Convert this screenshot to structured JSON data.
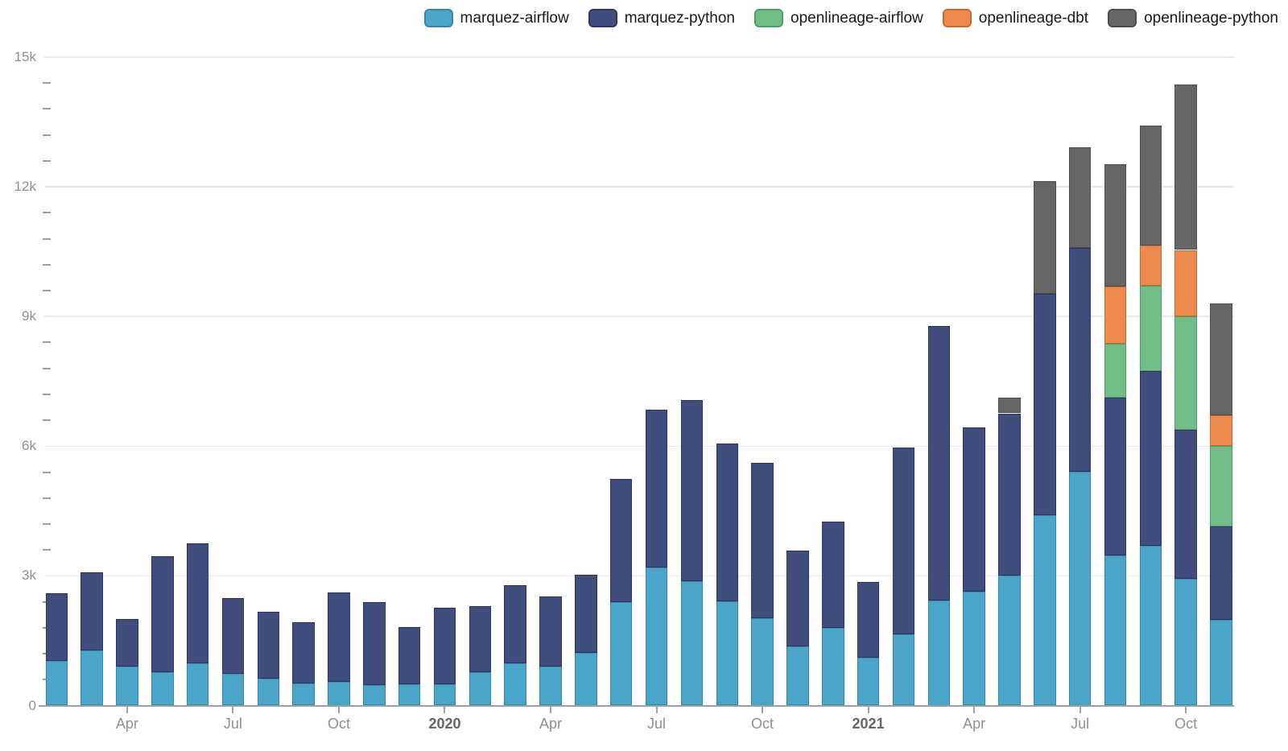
{
  "legend": {
    "items": [
      {
        "label": "marquez-airflow",
        "color": "#4aa5c9",
        "border": "#3786ab"
      },
      {
        "label": "marquez-python",
        "color": "#404d7d",
        "border": "#2b3560"
      },
      {
        "label": "openlineage-airflow",
        "color": "#73bd89",
        "border": "#4f9d68"
      },
      {
        "label": "openlineage-dbt",
        "color": "#ef8a4e",
        "border": "#c96a2f"
      },
      {
        "label": "openlineage-python",
        "color": "#666666",
        "border": "#4d4d4d"
      }
    ]
  },
  "colors": {
    "background": "#ffffff",
    "grid": "#e4e9f2",
    "axis_line": "#9aa0a6",
    "tick": "#9aa0a6",
    "label": "#8b9198",
    "label_bold": "#5f666f",
    "legend_text": "#17191c"
  },
  "chart_data": {
    "type": "bar",
    "stacked": true,
    "title": "",
    "xlabel": "",
    "ylabel": "",
    "grid": true,
    "legend_position": "top-right",
    "ylim": [
      0,
      15000
    ],
    "categories": [
      "Feb 2019",
      "Mar 2019",
      "Apr 2019",
      "May 2019",
      "Jun 2019",
      "Jul 2019",
      "Aug 2019",
      "Sep 2019",
      "Oct 2019",
      "Nov 2019",
      "Dec 2019",
      "Jan 2020",
      "Feb 2020",
      "Mar 2020",
      "Apr 2020",
      "May 2020",
      "Jun 2020",
      "Jul 2020",
      "Aug 2020",
      "Sep 2020",
      "Oct 2020",
      "Nov 2020",
      "Dec 2020",
      "Jan 2021",
      "Feb 2021",
      "Mar 2021",
      "Apr 2021",
      "May 2021",
      "Jun 2021",
      "Jul 2021",
      "Aug 2021",
      "Sep 2021",
      "Oct 2021",
      "Nov 2021"
    ],
    "series": [
      {
        "name": "marquez-airflow",
        "color": "#4aa5c9",
        "border": "#3786ab",
        "values": [
          1030,
          1280,
          900,
          780,
          970,
          730,
          620,
          520,
          550,
          470,
          500,
          500,
          780,
          970,
          900,
          1220,
          2400,
          3200,
          2880,
          2410,
          2020,
          1370,
          1790,
          1100,
          1650,
          2440,
          2630,
          3000,
          4410,
          5410,
          3470,
          3700,
          2940,
          1990
        ]
      },
      {
        "name": "marquez-python",
        "color": "#404d7d",
        "border": "#2b3560",
        "values": [
          1570,
          1810,
          1110,
          2670,
          2790,
          1750,
          1550,
          1410,
          2060,
          1930,
          1320,
          1770,
          1520,
          1810,
          1620,
          1800,
          2840,
          3650,
          4190,
          3650,
          3590,
          2210,
          2460,
          1760,
          4320,
          6350,
          3800,
          3760,
          5120,
          5170,
          3660,
          4040,
          3430,
          2160
        ]
      },
      {
        "name": "openlineage-airflow",
        "color": "#73bd89",
        "border": "#4f9d68",
        "values": [
          0,
          0,
          0,
          0,
          0,
          0,
          0,
          0,
          0,
          0,
          0,
          0,
          0,
          0,
          0,
          0,
          0,
          0,
          0,
          0,
          0,
          0,
          0,
          0,
          0,
          0,
          0,
          0,
          0,
          0,
          1240,
          1970,
          2630,
          1860
        ]
      },
      {
        "name": "openlineage-dbt",
        "color": "#ef8a4e",
        "border": "#c96a2f",
        "values": [
          0,
          0,
          0,
          0,
          0,
          0,
          0,
          0,
          0,
          0,
          0,
          0,
          0,
          0,
          0,
          0,
          0,
          0,
          0,
          0,
          0,
          0,
          0,
          0,
          0,
          0,
          0,
          0,
          0,
          0,
          1320,
          930,
          1540,
          700
        ]
      },
      {
        "name": "openlineage-python",
        "color": "#666666",
        "border": "#4d4d4d",
        "values": [
          0,
          0,
          0,
          0,
          0,
          0,
          0,
          0,
          0,
          0,
          0,
          0,
          0,
          0,
          0,
          0,
          0,
          0,
          0,
          0,
          0,
          0,
          0,
          0,
          0,
          0,
          0,
          370,
          2610,
          2330,
          2840,
          2770,
          3820,
          2600
        ]
      }
    ],
    "yticks": {
      "major": [
        {
          "value": 0,
          "label": "0"
        },
        {
          "value": 3000,
          "label": "3k"
        },
        {
          "value": 6000,
          "label": "6k"
        },
        {
          "value": 9000,
          "label": "9k"
        },
        {
          "value": 12000,
          "label": "12k"
        },
        {
          "value": 15000,
          "label": "15k"
        }
      ],
      "minor_step": 600
    },
    "xticks": [
      {
        "index": 2,
        "label": "Apr",
        "bold": false
      },
      {
        "index": 5,
        "label": "Jul",
        "bold": false
      },
      {
        "index": 8,
        "label": "Oct",
        "bold": false
      },
      {
        "index": 11,
        "label": "2020",
        "bold": true
      },
      {
        "index": 14,
        "label": "Apr",
        "bold": false
      },
      {
        "index": 17,
        "label": "Jul",
        "bold": false
      },
      {
        "index": 20,
        "label": "Oct",
        "bold": false
      },
      {
        "index": 23,
        "label": "2021",
        "bold": true
      },
      {
        "index": 26,
        "label": "Apr",
        "bold": false
      },
      {
        "index": 29,
        "label": "Jul",
        "bold": false
      },
      {
        "index": 32,
        "label": "Oct",
        "bold": false
      }
    ]
  }
}
